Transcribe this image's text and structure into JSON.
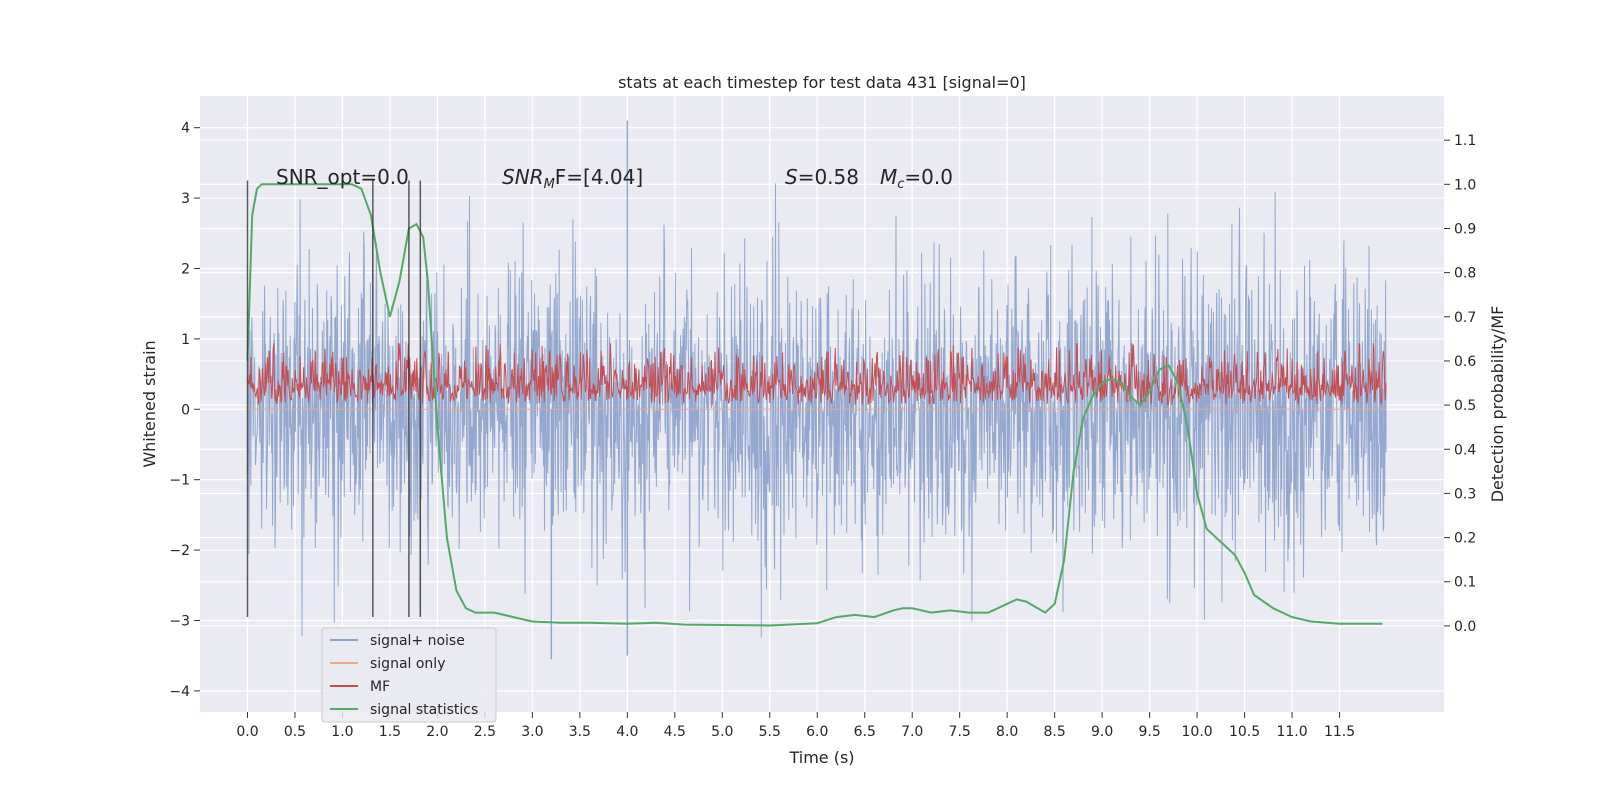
{
  "chart_data": {
    "type": "line",
    "title": "stats at each timestep for test data 431 [signal=0]",
    "xlabel": "Time (s)",
    "ylabel_left": "Whitened strain",
    "ylabel_right": "Detection probability/MF",
    "xlim": [
      -0.5,
      12.6
    ],
    "ylim_left": [
      -4.3,
      4.45
    ],
    "ylim_right": [
      -0.195,
      1.2
    ],
    "x_ticks": [
      0.0,
      0.5,
      1.0,
      1.5,
      2.0,
      2.5,
      3.0,
      3.5,
      4.0,
      4.5,
      5.0,
      5.5,
      6.0,
      6.5,
      7.0,
      7.5,
      8.0,
      8.5,
      9.0,
      9.5,
      10.0,
      10.5,
      11.0,
      11.5
    ],
    "x_tick_labels": [
      "0.0",
      "0.5",
      "1.0",
      "1.5",
      "2.0",
      "2.5",
      "3.0",
      "3.5",
      "4.0",
      "4.5",
      "5.0",
      "5.5",
      "6.0",
      "6.5",
      "7.0",
      "7.5",
      "8.0",
      "8.5",
      "9.0",
      "9.5",
      "10.0",
      "10.5",
      "11.0",
      "11.5"
    ],
    "y_left_ticks": [
      -4,
      -3,
      -2,
      -1,
      0,
      1,
      2,
      3,
      4
    ],
    "y_left_tick_labels": [
      "−4",
      "−3",
      "−2",
      "−1",
      "0",
      "1",
      "2",
      "3",
      "4"
    ],
    "y_right_ticks": [
      0.0,
      0.1,
      0.2,
      0.3,
      0.4,
      0.5,
      0.6,
      0.7,
      0.8,
      0.9,
      1.0,
      1.1
    ],
    "y_right_tick_labels": [
      "0.0",
      "0.1",
      "0.2",
      "0.3",
      "0.4",
      "0.5",
      "0.6",
      "0.7",
      "0.8",
      "0.9",
      "1.0",
      "1.1"
    ],
    "grid": true,
    "legend_placement": "lower-left",
    "annotations": {
      "snr_opt": "SNR_opt=0.0",
      "snr_mf_name": "SNR",
      "snr_mf_sub": "M",
      "snr_mf_rest": "F=[4.04]",
      "s_name": "S",
      "s_rest": "=0.58",
      "mc_name": "M",
      "mc_sub": "c",
      "mc_rest": "=0.0"
    },
    "vertical_lines_x": [
      0.0,
      1.32,
      1.7,
      1.82
    ],
    "series": [
      {
        "name": "signal+ noise",
        "axis": "left",
        "color": "#8fa4cc",
        "description_data": "dense whitened strain noise, approximately Gaussian with std ~1 between x=0 and x=11.99, extremes about -3.5 to 4.1",
        "extremes": [
          {
            "x": 4.0,
            "y": 4.1
          },
          {
            "x": 3.2,
            "y": -3.55
          },
          {
            "x": 4.0,
            "y": -3.5
          }
        ]
      },
      {
        "name": "signal only",
        "axis": "left",
        "color": "#e8a98a",
        "values_note": "zero signal"
      },
      {
        "name": "MF",
        "axis": "right",
        "color": "#c44e52",
        "range": [
          0.5,
          0.64
        ]
      },
      {
        "name": "signal statistics",
        "axis": "right",
        "color": "#55a868",
        "x": [
          0.0,
          0.05,
          0.1,
          0.15,
          0.25,
          0.4,
          0.6,
          0.8,
          1.0,
          1.1,
          1.2,
          1.3,
          1.4,
          1.5,
          1.6,
          1.7,
          1.78,
          1.85,
          1.9,
          2.0,
          2.1,
          2.2,
          2.3,
          2.4,
          2.6,
          2.8,
          3.0,
          3.3,
          3.6,
          4.0,
          4.3,
          4.6,
          5.0,
          5.5,
          6.0,
          6.2,
          6.4,
          6.6,
          6.8,
          6.9,
          7.0,
          7.2,
          7.4,
          7.6,
          7.8,
          8.0,
          8.1,
          8.2,
          8.4,
          8.5,
          8.6,
          8.7,
          8.8,
          8.9,
          9.0,
          9.1,
          9.2,
          9.3,
          9.4,
          9.5,
          9.6,
          9.7,
          9.75,
          9.8,
          9.9,
          10.0,
          10.1,
          10.2,
          10.3,
          10.4,
          10.5,
          10.6,
          10.8,
          11.0,
          11.2,
          11.5,
          11.95
        ],
        "values": [
          0.6,
          0.93,
          0.99,
          1.0,
          1.0,
          1.0,
          1.0,
          1.0,
          1.0,
          1.0,
          0.99,
          0.93,
          0.8,
          0.7,
          0.78,
          0.9,
          0.91,
          0.88,
          0.78,
          0.45,
          0.2,
          0.08,
          0.04,
          0.03,
          0.03,
          0.02,
          0.01,
          0.007,
          0.007,
          0.005,
          0.007,
          0.003,
          0.002,
          0.001,
          0.006,
          0.02,
          0.025,
          0.02,
          0.035,
          0.04,
          0.04,
          0.03,
          0.035,
          0.03,
          0.03,
          0.05,
          0.06,
          0.055,
          0.03,
          0.05,
          0.15,
          0.35,
          0.47,
          0.52,
          0.55,
          0.56,
          0.55,
          0.52,
          0.5,
          0.53,
          0.58,
          0.59,
          0.57,
          0.55,
          0.45,
          0.3,
          0.22,
          0.2,
          0.18,
          0.16,
          0.12,
          0.07,
          0.04,
          0.02,
          0.01,
          0.005,
          0.005
        ]
      }
    ]
  }
}
